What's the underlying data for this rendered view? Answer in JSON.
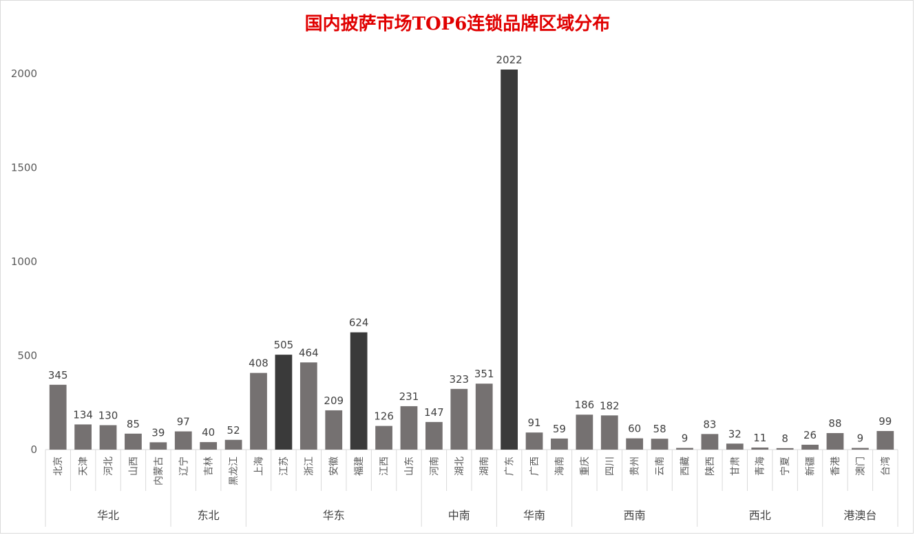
{
  "chart_data": {
    "type": "bar",
    "title": "国内披萨市场TOP6连锁品牌区域分布",
    "ylim": [
      0,
      2000
    ],
    "yticks": [
      0,
      500,
      1000,
      1500,
      2000
    ],
    "grid": false,
    "colors": {
      "normal": "#757171",
      "highlight": "#3a3a3a"
    },
    "groups": [
      {
        "name": "华北",
        "items": [
          {
            "label": "北京",
            "value": 345
          },
          {
            "label": "天津",
            "value": 134
          },
          {
            "label": "河北",
            "value": 130
          },
          {
            "label": "山西",
            "value": 85
          },
          {
            "label": "内蒙古",
            "value": 39
          }
        ]
      },
      {
        "name": "东北",
        "items": [
          {
            "label": "辽宁",
            "value": 97
          },
          {
            "label": "吉林",
            "value": 40
          },
          {
            "label": "黑龙江",
            "value": 52
          }
        ]
      },
      {
        "name": "华东",
        "items": [
          {
            "label": "上海",
            "value": 408
          },
          {
            "label": "江苏",
            "value": 505,
            "highlight": true
          },
          {
            "label": "浙江",
            "value": 464
          },
          {
            "label": "安徽",
            "value": 209
          },
          {
            "label": "福建",
            "value": 624,
            "highlight": true
          },
          {
            "label": "江西",
            "value": 126
          },
          {
            "label": "山东",
            "value": 231
          }
        ]
      },
      {
        "name": "中南",
        "items": [
          {
            "label": "河南",
            "value": 147
          },
          {
            "label": "湖北",
            "value": 323
          },
          {
            "label": "湖南",
            "value": 351
          }
        ]
      },
      {
        "name": "华南",
        "items": [
          {
            "label": "广东",
            "value": 2022,
            "highlight": true
          },
          {
            "label": "广西",
            "value": 91
          },
          {
            "label": "海南",
            "value": 59
          }
        ]
      },
      {
        "name": "西南",
        "items": [
          {
            "label": "重庆",
            "value": 186
          },
          {
            "label": "四川",
            "value": 182
          },
          {
            "label": "贵州",
            "value": 60
          },
          {
            "label": "云南",
            "value": 58
          },
          {
            "label": "西藏",
            "value": 9
          }
        ]
      },
      {
        "name": "西北",
        "items": [
          {
            "label": "陕西",
            "value": 83
          },
          {
            "label": "甘肃",
            "value": 32
          },
          {
            "label": "青海",
            "value": 11
          },
          {
            "label": "宁夏",
            "value": 8
          },
          {
            "label": "新疆",
            "value": 26
          }
        ]
      },
      {
        "name": "港澳台",
        "items": [
          {
            "label": "香港",
            "value": 88
          },
          {
            "label": "澳门",
            "value": 9
          },
          {
            "label": "台湾",
            "value": 99
          }
        ]
      }
    ]
  }
}
